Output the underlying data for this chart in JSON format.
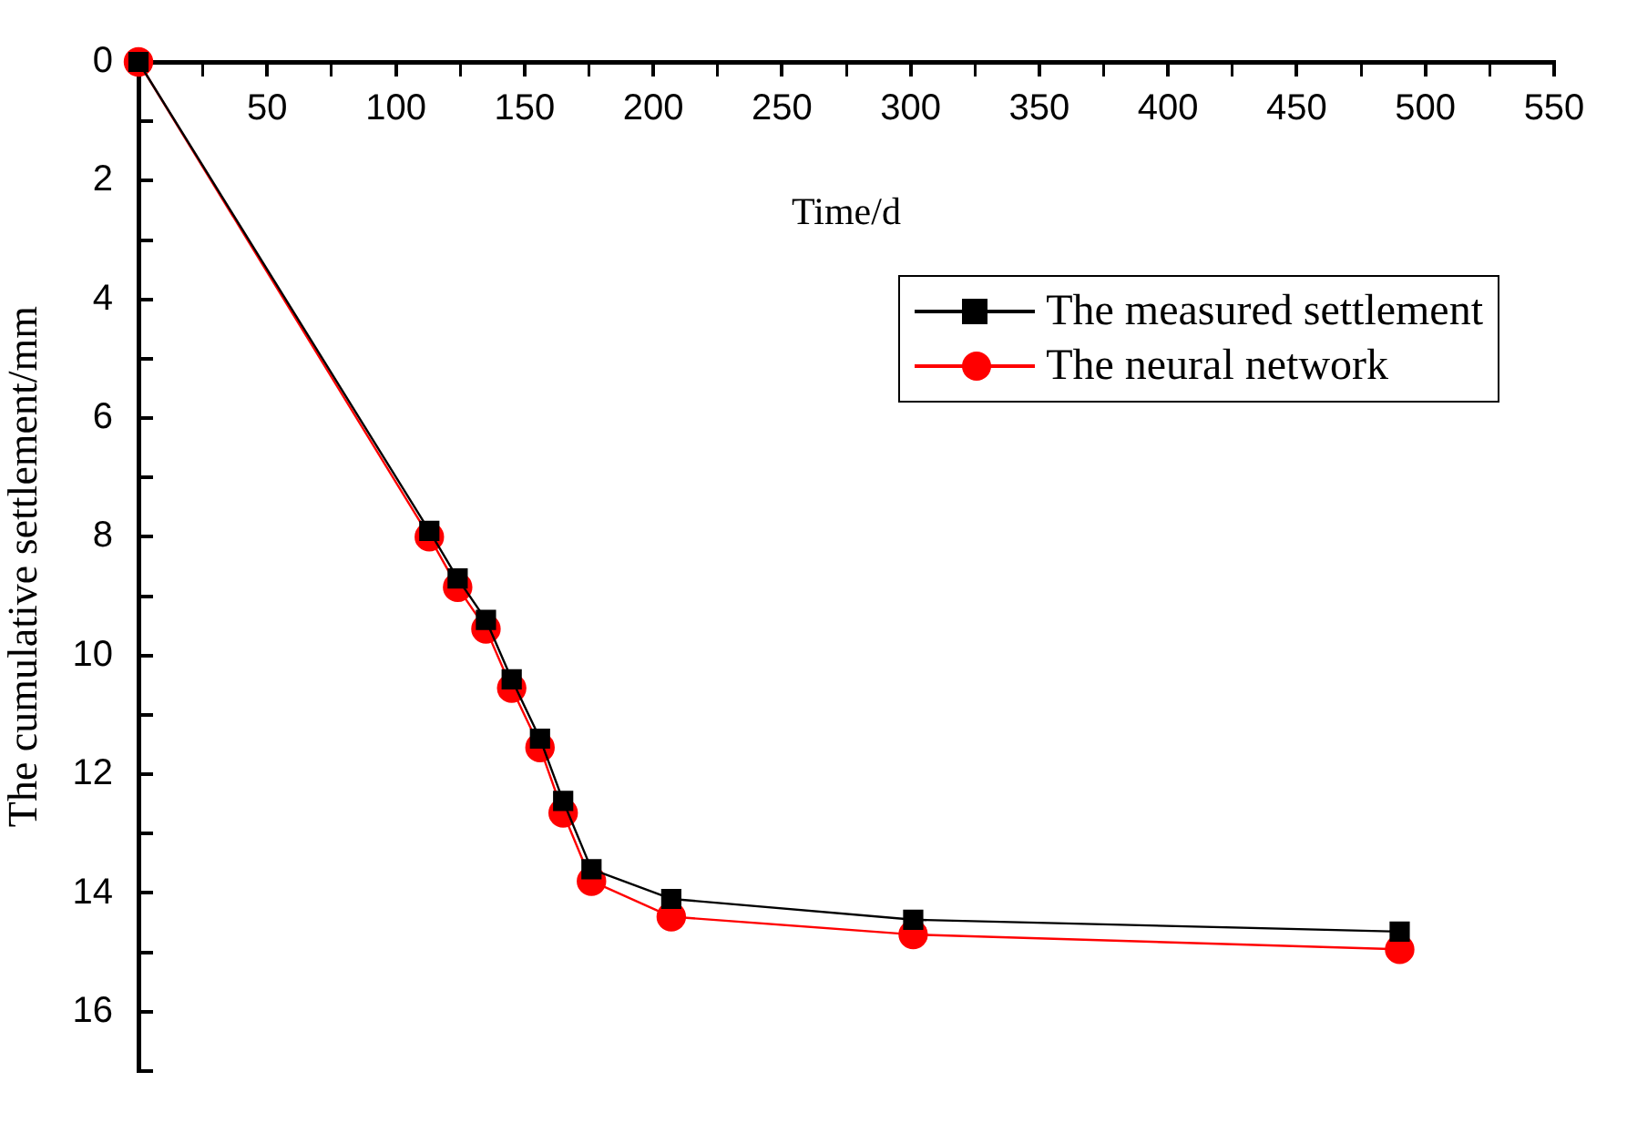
{
  "chart_data": {
    "type": "line",
    "xlabel": "Time/d",
    "ylabel": "The cumulative settlement/mm",
    "xlim": [
      0,
      550
    ],
    "xticks": [
      {
        "value": 0,
        "label": null
      },
      {
        "value": 25,
        "label": null
      },
      50,
      {
        "value": 75,
        "label": null
      },
      100,
      {
        "value": 125,
        "label": null
      },
      150,
      {
        "value": 175,
        "label": null
      },
      200,
      {
        "value": 225,
        "label": null
      },
      250,
      {
        "value": 275,
        "label": null
      },
      300,
      {
        "value": 325,
        "label": null
      },
      350,
      {
        "value": 375,
        "label": null
      },
      400,
      {
        "value": 425,
        "label": null
      },
      450,
      {
        "value": 475,
        "label": null
      },
      500,
      {
        "value": 525,
        "label": null
      },
      550
    ],
    "ylim": [
      17,
      0
    ],
    "yticks": [
      0,
      {
        "value": 1,
        "label": null
      },
      2,
      {
        "value": 3,
        "label": null
      },
      4,
      {
        "value": 5,
        "label": null
      },
      6,
      {
        "value": 7,
        "label": null
      },
      8,
      {
        "value": 9,
        "label": null
      },
      10,
      {
        "value": 11,
        "label": null
      },
      12,
      {
        "value": 13,
        "label": null
      },
      14,
      {
        "value": 15,
        "label": null
      },
      16,
      {
        "value": 17,
        "label": null
      }
    ],
    "grid": false,
    "legend": "top right",
    "series": [
      {
        "name": "The measured settlement",
        "color": "#000000",
        "marker": "square",
        "x": [
          0,
          113,
          124,
          135,
          145,
          156,
          165,
          176,
          207,
          301,
          490
        ],
        "values": [
          0,
          7.9,
          8.7,
          9.4,
          10.4,
          11.4,
          12.45,
          13.6,
          14.1,
          14.45,
          14.65
        ]
      },
      {
        "name": "The neural network",
        "color": "#ff0000",
        "marker": "circle",
        "x": [
          0,
          113,
          124,
          135,
          145,
          156,
          165,
          176,
          207,
          301,
          490
        ],
        "values": [
          0,
          8.0,
          8.85,
          9.55,
          10.55,
          11.55,
          12.65,
          13.8,
          14.4,
          14.7,
          14.95
        ]
      }
    ]
  }
}
